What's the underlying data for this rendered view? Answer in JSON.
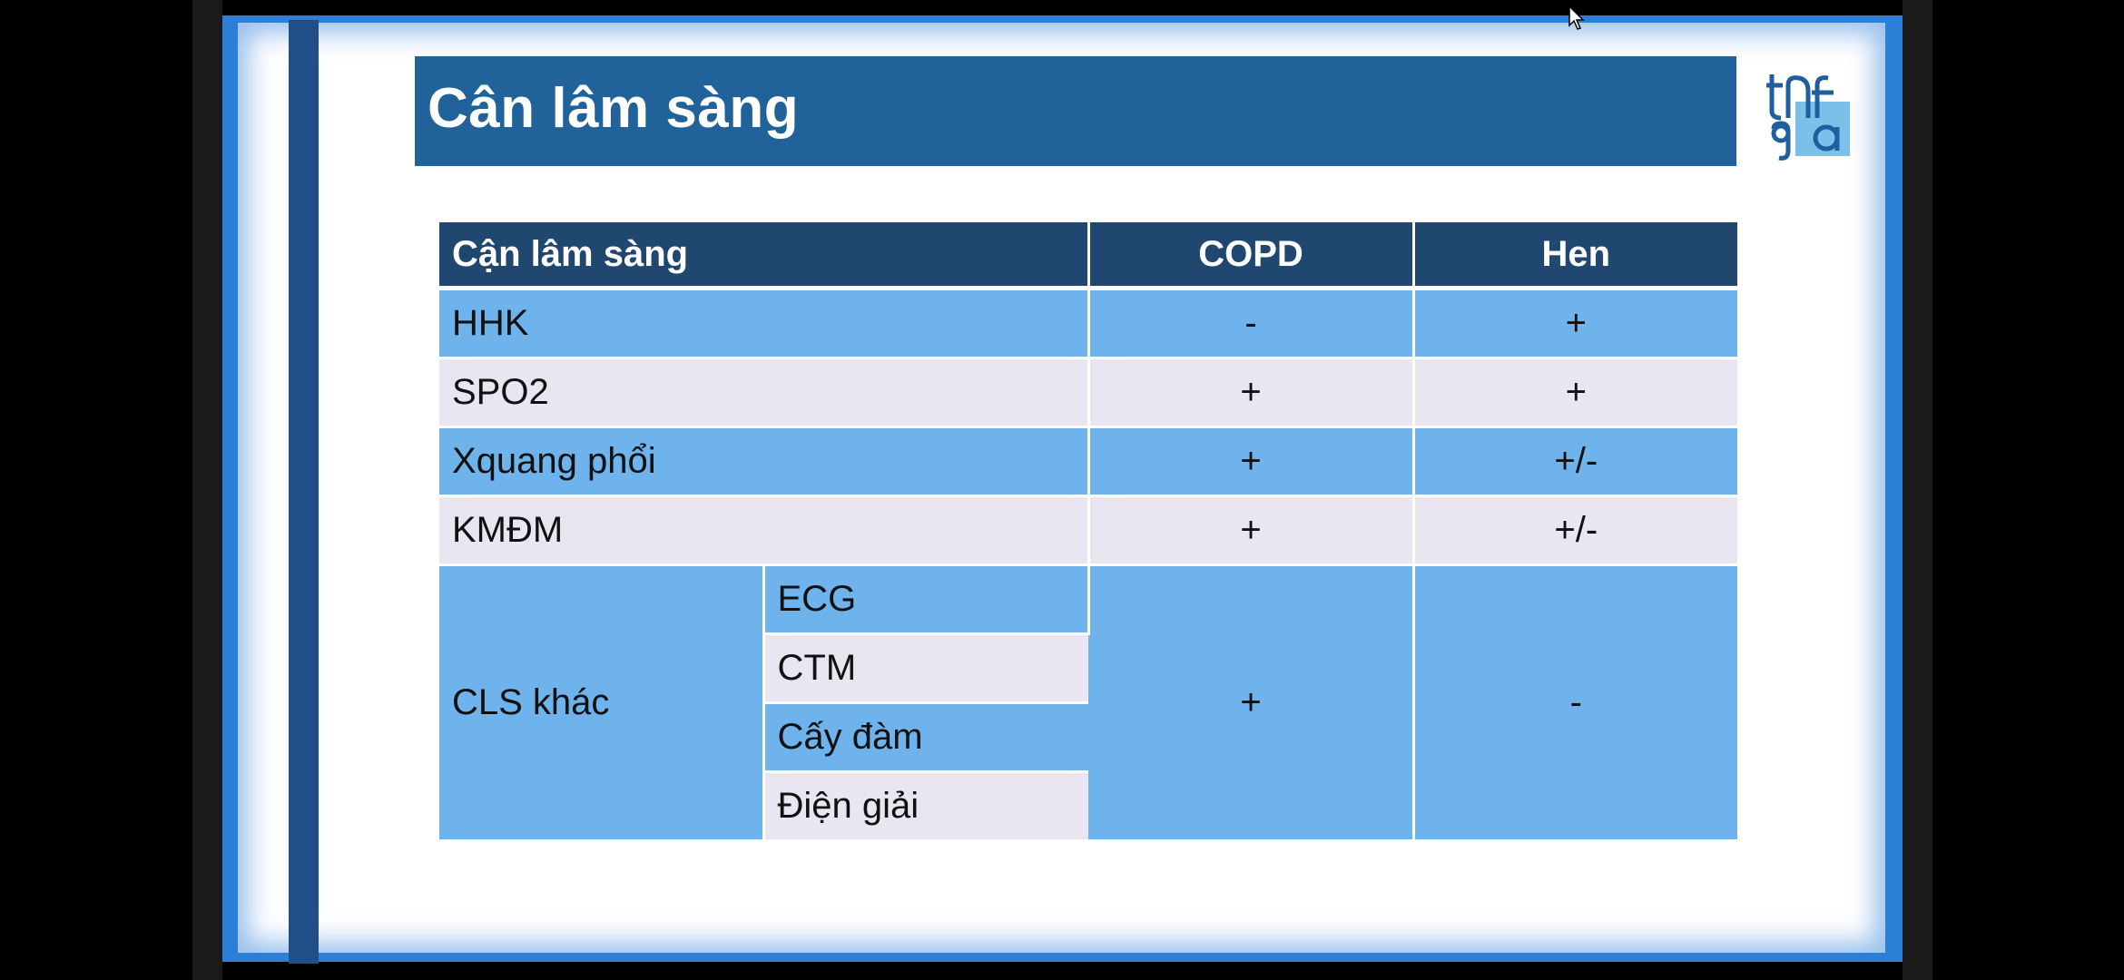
{
  "slide": {
    "title": "Cân lâm sàng",
    "logo_icon": "logo-icon"
  },
  "table": {
    "headers": [
      "Cận lâm sàng",
      "COPD",
      "Hen"
    ],
    "rows": [
      {
        "label": "HHK",
        "copd": "-",
        "hen": "+"
      },
      {
        "label": "SPO2",
        "copd": "+",
        "hen": "+"
      },
      {
        "label": "Xquang phổi",
        "copd": "+",
        "hen": "+/-"
      },
      {
        "label": "KMĐM",
        "copd": "+",
        "hen": "+/-"
      }
    ],
    "group": {
      "label": "CLS khác",
      "items": [
        "ECG",
        "CTM",
        "Cấy đàm",
        "Điện giải"
      ],
      "copd": "+",
      "hen": "-"
    }
  },
  "colors": {
    "title_bar": "#21629b",
    "header": "#1f4770",
    "row_blue": "#6fb3ec",
    "row_light": "#e9e6f1"
  }
}
